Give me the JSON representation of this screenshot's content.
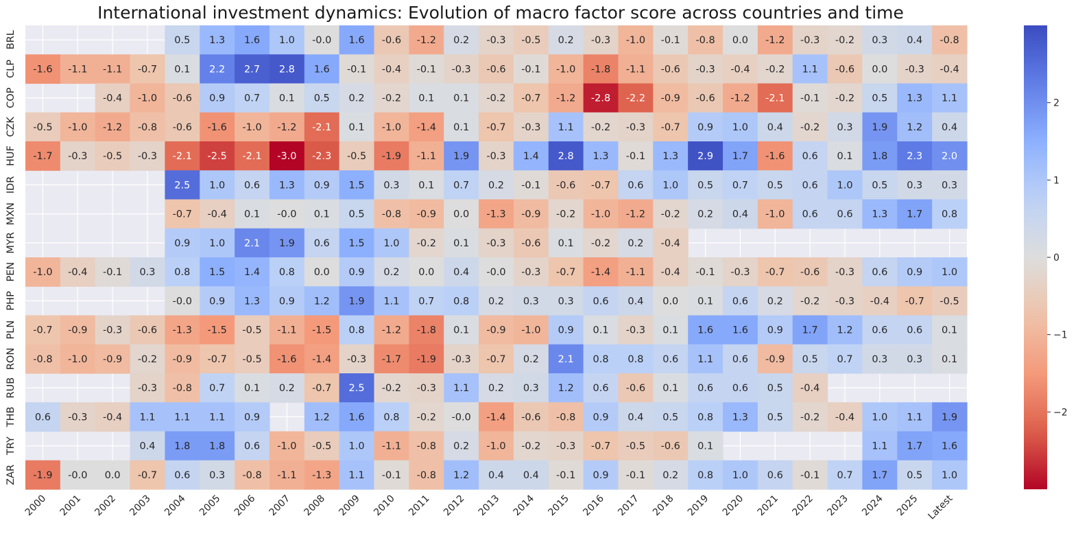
{
  "chart_data": {
    "type": "heatmap",
    "title": "International investment dynamics: Evolution of macro factor score across countries and time",
    "xlabel": "",
    "ylabel": "",
    "colormap": "coolwarm_r",
    "vmin": -3.0,
    "vmax": 3.0,
    "colorbar_ticks": [
      2,
      1,
      0,
      -1,
      -2
    ],
    "colorbar_tick_labels": [
      "2",
      "1",
      "0",
      "−1",
      "−2"
    ],
    "columns": [
      "2000",
      "2001",
      "2002",
      "2003",
      "2004",
      "2005",
      "2006",
      "2007",
      "2008",
      "2009",
      "2010",
      "2011",
      "2012",
      "2013",
      "2014",
      "2015",
      "2016",
      "2017",
      "2018",
      "2019",
      "2020",
      "2021",
      "2022",
      "2023",
      "2024",
      "2025",
      "Latest"
    ],
    "rows": [
      "BRL",
      "CLP",
      "COP",
      "CZK",
      "HUF",
      "IDR",
      "MXN",
      "MYR",
      "PEN",
      "PHP",
      "PLN",
      "RON",
      "RUB",
      "THB",
      "TRY",
      "ZAR"
    ],
    "values": [
      [
        null,
        null,
        null,
        null,
        0.5,
        1.3,
        1.6,
        1.0,
        -0.0,
        1.6,
        -0.6,
        -1.2,
        0.2,
        -0.3,
        -0.5,
        0.2,
        -0.3,
        -1.0,
        -0.1,
        -0.8,
        0.0,
        -1.2,
        -0.3,
        -0.2,
        0.3,
        0.4,
        -0.8
      ],
      [
        -1.6,
        -1.1,
        -1.1,
        -0.7,
        0.1,
        2.2,
        2.7,
        2.8,
        1.6,
        -0.1,
        -0.4,
        -0.1,
        -0.3,
        -0.6,
        -0.1,
        -1.0,
        -1.8,
        -1.1,
        -0.6,
        -0.3,
        -0.4,
        -0.2,
        1.1,
        -0.6,
        0.0,
        -0.3,
        -0.4
      ],
      [
        null,
        null,
        -0.4,
        -1.0,
        -0.6,
        0.9,
        0.7,
        0.1,
        0.5,
        0.2,
        -0.2,
        0.1,
        0.1,
        -0.2,
        -0.7,
        -1.2,
        -2.8,
        -2.2,
        -0.9,
        -0.6,
        -1.2,
        -2.1,
        -0.1,
        -0.2,
        0.5,
        1.3,
        1.1
      ],
      [
        -0.5,
        -1.0,
        -1.2,
        -0.8,
        -0.6,
        -1.6,
        -1.0,
        -1.2,
        -2.1,
        0.1,
        -1.0,
        -1.4,
        0.1,
        -0.7,
        -0.3,
        1.1,
        -0.2,
        -0.3,
        -0.7,
        0.9,
        1.0,
        0.4,
        -0.2,
        0.3,
        1.9,
        1.2,
        0.4
      ],
      [
        -1.7,
        -0.3,
        -0.5,
        -0.3,
        -2.1,
        -2.5,
        -2.1,
        -3.0,
        -2.3,
        -0.5,
        -1.9,
        -1.1,
        1.9,
        -0.3,
        1.4,
        2.8,
        1.3,
        -0.1,
        1.3,
        2.9,
        1.7,
        -1.6,
        0.6,
        0.1,
        1.8,
        2.3,
        2.0
      ],
      [
        null,
        null,
        null,
        null,
        2.5,
        1.0,
        0.6,
        1.3,
        0.9,
        1.5,
        0.3,
        0.1,
        0.7,
        0.2,
        -0.1,
        -0.6,
        -0.7,
        0.6,
        1.0,
        0.5,
        0.7,
        0.5,
        0.6,
        1.0,
        0.5,
        0.3,
        0.3
      ],
      [
        null,
        null,
        null,
        null,
        -0.7,
        -0.4,
        0.1,
        -0.0,
        0.1,
        0.5,
        -0.8,
        -0.9,
        0.0,
        -1.3,
        -0.9,
        -0.2,
        -1.0,
        -1.2,
        -0.2,
        0.2,
        0.4,
        -1.0,
        0.6,
        0.6,
        1.3,
        1.7,
        0.8
      ],
      [
        null,
        null,
        null,
        null,
        0.9,
        1.0,
        2.1,
        1.9,
        0.6,
        1.5,
        1.0,
        -0.2,
        0.1,
        -0.3,
        -0.6,
        0.1,
        -0.2,
        0.2,
        -0.4,
        null,
        null,
        null,
        null,
        null,
        null,
        null,
        null
      ],
      [
        -1.0,
        -0.4,
        -0.1,
        0.3,
        0.8,
        1.5,
        1.4,
        0.8,
        0.0,
        0.9,
        0.2,
        0.0,
        0.4,
        -0.0,
        -0.3,
        -0.7,
        -1.4,
        -1.1,
        -0.4,
        -0.1,
        -0.3,
        -0.7,
        -0.6,
        -0.3,
        0.6,
        0.9,
        1.0
      ],
      [
        null,
        null,
        null,
        null,
        -0.0,
        0.9,
        1.3,
        0.9,
        1.2,
        1.9,
        1.1,
        0.7,
        0.8,
        0.2,
        0.3,
        0.3,
        0.6,
        0.4,
        0.0,
        0.1,
        0.6,
        0.2,
        -0.2,
        -0.3,
        -0.4,
        -0.7,
        -0.5
      ],
      [
        -0.7,
        -0.9,
        -0.3,
        -0.6,
        -1.3,
        -1.5,
        -0.5,
        -1.1,
        -1.5,
        0.8,
        -1.2,
        -1.8,
        0.1,
        -0.9,
        -1.0,
        0.9,
        0.1,
        -0.3,
        0.1,
        1.6,
        1.6,
        0.9,
        1.7,
        1.2,
        0.6,
        0.6,
        0.1
      ],
      [
        -0.8,
        -1.0,
        -0.9,
        -0.2,
        -0.9,
        -0.7,
        -0.5,
        -1.6,
        -1.4,
        -0.3,
        -1.7,
        -1.9,
        -0.3,
        -0.7,
        0.2,
        2.1,
        0.8,
        0.8,
        0.6,
        1.1,
        0.6,
        -0.9,
        0.5,
        0.7,
        0.3,
        0.3,
        0.1
      ],
      [
        null,
        null,
        null,
        -0.3,
        -0.8,
        0.7,
        0.1,
        0.2,
        -0.7,
        2.5,
        -0.2,
        -0.3,
        1.1,
        0.2,
        0.3,
        1.2,
        0.6,
        -0.6,
        0.1,
        0.6,
        0.6,
        0.5,
        -0.4,
        null,
        null,
        null,
        null
      ],
      [
        0.6,
        -0.3,
        -0.4,
        1.1,
        1.1,
        1.1,
        0.9,
        null,
        1.2,
        1.6,
        0.8,
        -0.2,
        -0.0,
        -1.4,
        -0.6,
        -0.8,
        0.9,
        0.4,
        0.5,
        0.8,
        1.3,
        0.5,
        -0.2,
        -0.4,
        1.0,
        1.1,
        1.9
      ],
      [
        null,
        null,
        null,
        0.4,
        1.8,
        1.8,
        0.6,
        -1.0,
        -0.5,
        1.0,
        -1.1,
        -0.8,
        0.2,
        -1.0,
        -0.2,
        -0.3,
        -0.7,
        -0.5,
        -0.6,
        0.1,
        null,
        null,
        null,
        null,
        1.1,
        1.7,
        1.6
      ],
      [
        -1.9,
        -0.0,
        0.0,
        -0.7,
        0.6,
        0.3,
        -0.8,
        -1.1,
        -1.3,
        1.1,
        -0.1,
        -0.8,
        1.2,
        0.4,
        0.4,
        -0.1,
        0.9,
        -0.1,
        0.2,
        0.8,
        1.0,
        0.6,
        -0.1,
        0.7,
        1.7,
        0.5,
        1.0
      ]
    ],
    "annotation_format": "0.1f",
    "missing_color": "#eaeaf2"
  }
}
